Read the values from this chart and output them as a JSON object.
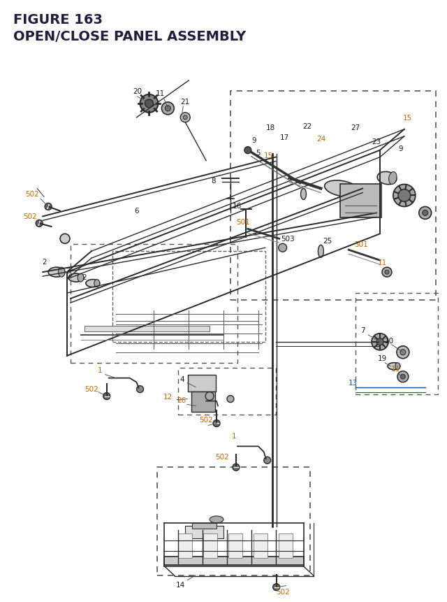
{
  "title_line1": "FIGURE 163",
  "title_line2": "OPEN/CLOSE PANEL ASSEMBLY",
  "bg_color": "#ffffff",
  "title_color": "#1f1f3d",
  "fig_width": 6.4,
  "fig_height": 8.62,
  "label_color_black": "#1a1a1a",
  "label_color_orange": "#cc6600",
  "label_color_blue": "#0055aa"
}
